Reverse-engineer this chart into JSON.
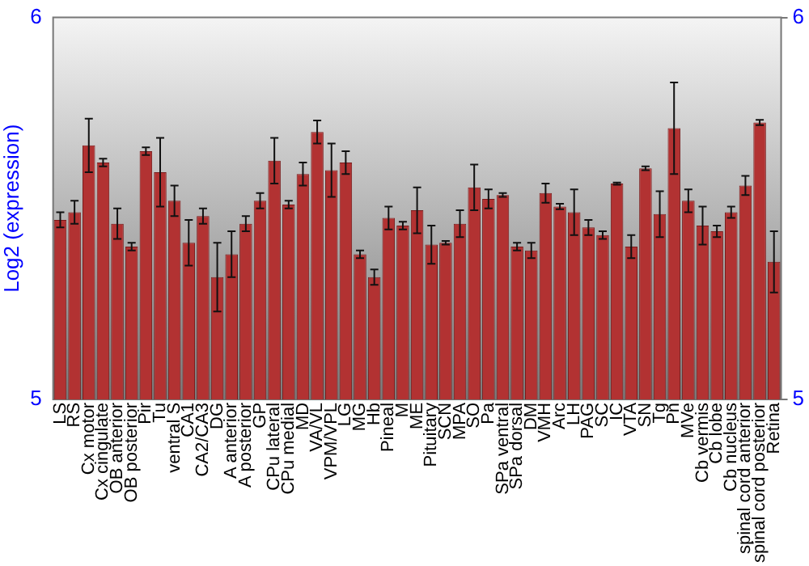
{
  "chart_data": {
    "type": "bar",
    "ylabel": "Log2 (expression)",
    "categories": [
      "LS",
      "RS",
      "Cx motor",
      "Cx cingulate",
      "OB anterior",
      "OB posterior",
      "Pir",
      "Tu",
      "ventral S",
      "CA1",
      "CA2/CA3",
      "DG",
      "A anterior",
      "A posterior",
      "GP",
      "CPu lateral",
      "CPu medial",
      "MD",
      "VA/VL",
      "VPM/VPL",
      "LG",
      "MG",
      "Hb",
      "Pineal",
      "M",
      "ME",
      "Pituitary",
      "SCN",
      "MPA",
      "SO",
      "Pa",
      "SPa ventral",
      "SPa dorsal",
      "DM",
      "VMH",
      "Arc",
      "LH",
      "PAG",
      "SC",
      "IC",
      "VTA",
      "SN",
      "Tg",
      "Pn",
      "MVe",
      "Cb vermis",
      "Cb lobe",
      "Cb nucleus",
      "spinal cord anterior",
      "spinal cord posterior",
      "Retina"
    ],
    "values": [
      5.47,
      5.49,
      5.665,
      5.62,
      5.46,
      5.4,
      5.65,
      5.595,
      5.52,
      5.41,
      5.48,
      5.32,
      5.38,
      5.46,
      5.52,
      5.625,
      5.51,
      5.59,
      5.7,
      5.6,
      5.62,
      5.38,
      5.32,
      5.475,
      5.455,
      5.495,
      5.405,
      5.41,
      5.46,
      5.555,
      5.525,
      5.535,
      5.4,
      5.39,
      5.54,
      5.505,
      5.49,
      5.45,
      5.43,
      5.565,
      5.4,
      5.605,
      5.485,
      5.71,
      5.52,
      5.455,
      5.44,
      5.49,
      5.56,
      5.725,
      5.36
    ],
    "errors": [
      0.02,
      0.03,
      0.07,
      0.01,
      0.04,
      0.01,
      0.01,
      0.09,
      0.04,
      0.06,
      0.02,
      0.09,
      0.06,
      0.02,
      0.02,
      0.06,
      0.01,
      0.03,
      0.03,
      0.07,
      0.03,
      0.01,
      0.02,
      0.03,
      0.01,
      0.06,
      0.05,
      0.005,
      0.035,
      0.06,
      0.025,
      0.005,
      0.01,
      0.02,
      0.025,
      0.007,
      0.06,
      0.02,
      0.01,
      0.003,
      0.03,
      0.005,
      0.06,
      0.12,
      0.03,
      0.05,
      0.015,
      0.015,
      0.025,
      0.007,
      0.08
    ],
    "color": "#b23232",
    "ylim": [
      5,
      6
    ],
    "yticks": [
      5,
      6
    ],
    "y2lim": [
      5,
      6
    ],
    "y2ticks": [
      5,
      6
    ],
    "grid": false,
    "legend": false
  }
}
